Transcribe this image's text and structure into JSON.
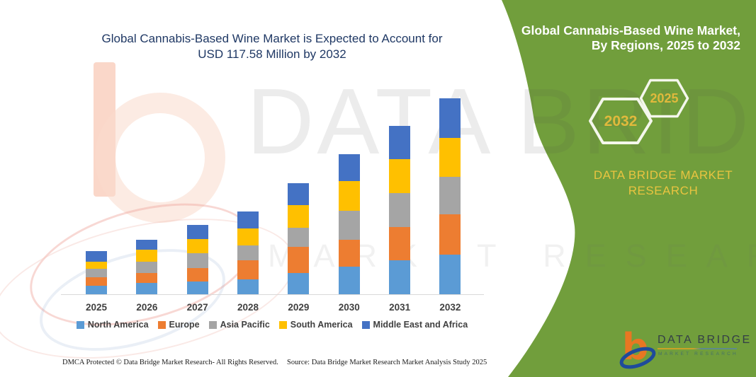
{
  "left_panel": {
    "title_line1": "Global Cannabis-Based Wine Market is Expected to Account for",
    "title_line2": "USD 117.58 Million by 2032",
    "footer": {
      "dmca": "DMCA Protected © Data Bridge Market Research-  All Rights Reserved.",
      "source": "Source: Data Bridge Market Research  Market Analysis Study 2025"
    }
  },
  "right_panel": {
    "title_line1": "Global Cannabis-Based Wine Market,",
    "title_line2": "By Regions, 2025 to 2032",
    "hexagons": [
      {
        "label": "2032"
      },
      {
        "label": "2025"
      }
    ],
    "brand_line1": "DATA BRIDGE MARKET",
    "brand_line2": "RESEARCH",
    "logo": {
      "name_line": "DATA BRIDGE",
      "sub_line": "MARKET RESEARCH"
    },
    "colors": {
      "panel_green": "#719e3c",
      "hex_outline": "#f4f7ec",
      "hex_text": "#e0b93c",
      "brand_yellow": "#e9c440"
    }
  },
  "watermarks": {
    "big_text": "DATA BRIDGE",
    "sub_text": "MARKET RESEARCH"
  },
  "chart_data": {
    "type": "bar",
    "stacked": true,
    "title": "Global Cannabis-Based Wine Market is Expected to Account for USD 117.58 Million by 2032",
    "unit": "USD Million",
    "xlabel": "",
    "ylabel": "",
    "ylim": [
      0,
      120
    ],
    "grid": false,
    "legend_position": "bottom",
    "categories": [
      "2025",
      "2026",
      "2027",
      "2028",
      "2029",
      "2030",
      "2031",
      "2032"
    ],
    "series": [
      {
        "name": "North America",
        "color": "#5b9bd5",
        "values": [
          5.0,
          6.8,
          7.5,
          8.9,
          12.7,
          16.7,
          20.3,
          23.8
        ]
      },
      {
        "name": "Europe",
        "color": "#ed7d31",
        "values": [
          5.4,
          5.9,
          8.1,
          11.6,
          15.6,
          15.9,
          20.1,
          24.1
        ]
      },
      {
        "name": "Asia Pacific",
        "color": "#a5a5a5",
        "values": [
          5.0,
          6.8,
          8.9,
          8.9,
          11.8,
          17.7,
          20.3,
          22.7
        ]
      },
      {
        "name": "South America",
        "color": "#ffc000",
        "values": [
          4.3,
          7.1,
          8.8,
          10.2,
          13.3,
          17.7,
          20.3,
          23.2
        ]
      },
      {
        "name": "Middle East and Africa",
        "color": "#4472c4",
        "values": [
          6.4,
          5.9,
          8.2,
          9.9,
          13.2,
          15.9,
          20.0,
          23.8
        ]
      }
    ],
    "totals": [
      26.1,
      32.5,
      41.5,
      49.5,
      66.6,
      83.9,
      101.0,
      117.6
    ]
  }
}
